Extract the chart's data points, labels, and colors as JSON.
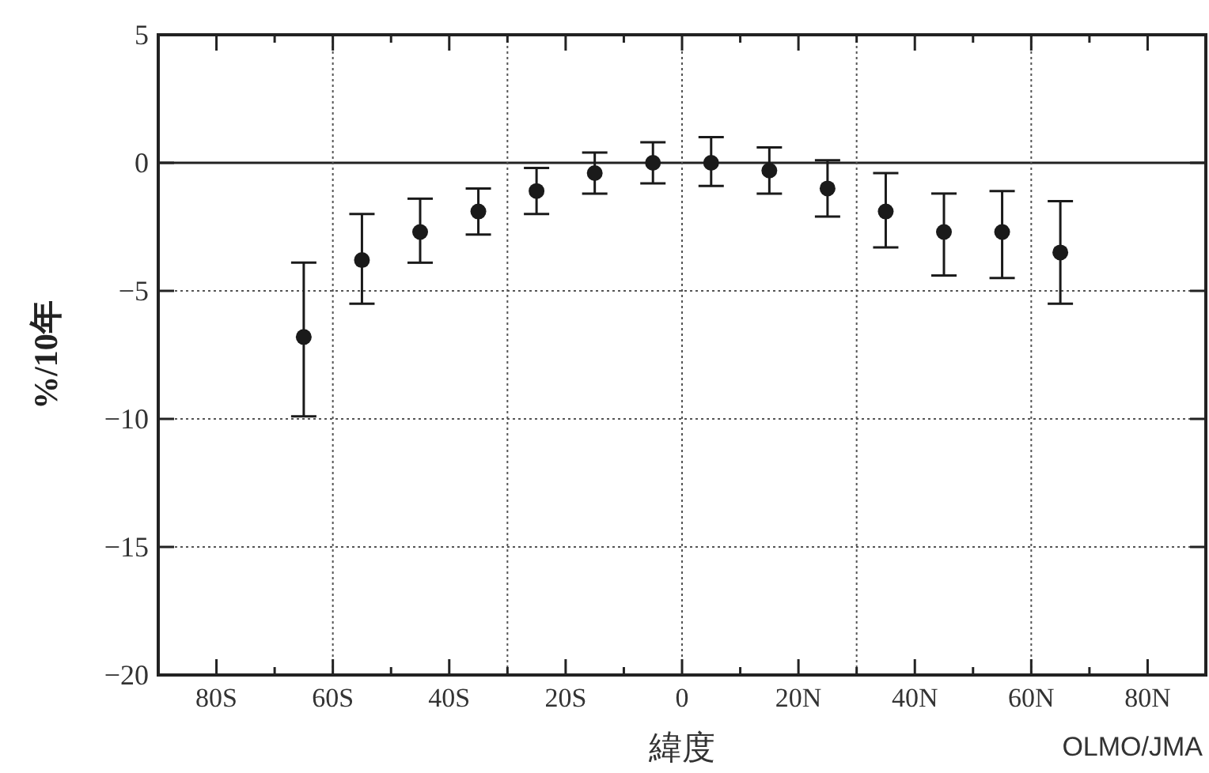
{
  "chart_data": {
    "type": "scatter",
    "xlabel": "緯度",
    "ylabel": "%/10年",
    "annotations": [
      "OLMO/JMA"
    ],
    "x": [
      -65,
      -55,
      -45,
      -35,
      -25,
      -15,
      -5,
      5,
      15,
      25,
      35,
      45,
      55,
      65
    ],
    "series": [
      {
        "color": "#1a1a1a",
        "values": [
          -6.8,
          -3.8,
          -2.7,
          -1.9,
          -1.1,
          -0.4,
          0.0,
          0.0,
          -0.3,
          -1.0,
          -1.9,
          -2.7,
          -2.7,
          -3.5
        ],
        "errors": [
          [
            -9.9,
            -3.9
          ],
          [
            -5.5,
            -2.0
          ],
          [
            -3.9,
            -1.4
          ],
          [
            -2.8,
            -1.0
          ],
          [
            -2.0,
            -0.2
          ],
          [
            -1.2,
            0.4
          ],
          [
            -0.8,
            0.8
          ],
          [
            -0.9,
            1.0
          ],
          [
            -1.2,
            0.6
          ],
          [
            -2.1,
            0.1
          ],
          [
            -3.3,
            -0.4
          ],
          [
            -4.4,
            -1.2
          ],
          [
            -4.5,
            -1.1
          ],
          [
            -5.5,
            -1.5
          ]
        ]
      }
    ],
    "marker": "circle",
    "xlim": [
      -90,
      90
    ],
    "xticks": [
      {
        "value": -80,
        "label": "80S"
      },
      {
        "value": -70,
        "label": null
      },
      {
        "value": -60,
        "label": "60S"
      },
      {
        "value": -50,
        "label": null
      },
      {
        "value": -40,
        "label": "40S"
      },
      {
        "value": -30,
        "label": null
      },
      {
        "value": -20,
        "label": "20S"
      },
      {
        "value": -10,
        "label": null
      },
      0,
      {
        "value": 10,
        "label": null
      },
      {
        "value": 20,
        "label": "20N"
      },
      {
        "value": 30,
        "label": null
      },
      {
        "value": 40,
        "label": "40N"
      },
      {
        "value": 50,
        "label": null
      },
      {
        "value": 60,
        "label": "60N"
      },
      {
        "value": 70,
        "label": null
      },
      {
        "value": 80,
        "label": "80N"
      }
    ],
    "ylim": [
      -20,
      5
    ],
    "yticks": [
      {
        "value": -20,
        "label": "−20"
      },
      {
        "value": -15,
        "label": "−15"
      },
      {
        "value": -10,
        "label": "−10"
      },
      {
        "value": -5,
        "label": "−5"
      },
      0,
      5
    ],
    "grid": "y",
    "ref_lines": [
      {
        "axis": "y",
        "value": 0,
        "line_style": "solid"
      },
      {
        "axis": "x",
        "value": -60,
        "line_style": "dotted"
      },
      {
        "axis": "x",
        "value": -30,
        "line_style": "dotted"
      },
      {
        "axis": "x",
        "value": 0,
        "line_style": "dotted"
      },
      {
        "axis": "x",
        "value": 30,
        "line_style": "dotted"
      },
      {
        "axis": "x",
        "value": 60,
        "line_style": "dotted"
      }
    ]
  }
}
